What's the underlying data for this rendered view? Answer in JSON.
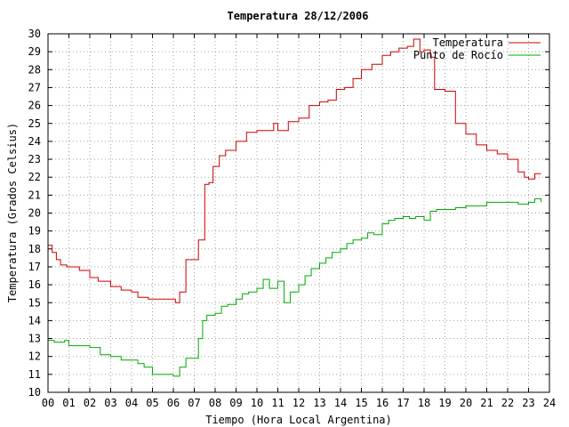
{
  "chart_data": {
    "type": "line",
    "title": "Temperatura 28/12/2006",
    "xlabel": "Tiempo (Hora Local Argentina)",
    "ylabel": "Temperatura (Grados Celsius)",
    "xlim": [
      0,
      24
    ],
    "ylim": [
      10,
      30
    ],
    "x_ticks": [
      "00",
      "01",
      "02",
      "03",
      "04",
      "05",
      "06",
      "07",
      "08",
      "09",
      "10",
      "11",
      "12",
      "13",
      "14",
      "15",
      "16",
      "17",
      "18",
      "19",
      "20",
      "21",
      "22",
      "23",
      "24"
    ],
    "y_ticks": [
      10,
      11,
      12,
      13,
      14,
      15,
      16,
      17,
      18,
      19,
      20,
      21,
      22,
      23,
      24,
      25,
      26,
      27,
      28,
      29,
      30
    ],
    "grid": true,
    "legend": "top-right",
    "series": [
      {
        "name": "Temperatura",
        "color": "#cc0000",
        "x": [
          0.0,
          0.2,
          0.4,
          0.6,
          0.9,
          1.0,
          1.5,
          2.0,
          2.4,
          3.0,
          3.5,
          4.0,
          4.3,
          4.8,
          5.5,
          6.0,
          6.1,
          6.3,
          6.6,
          7.0,
          7.2,
          7.5,
          7.7,
          7.9,
          8.2,
          8.5,
          9.0,
          9.5,
          10.0,
          10.5,
          10.8,
          11.0,
          11.5,
          12.0,
          12.5,
          13.0,
          13.4,
          13.8,
          14.2,
          14.6,
          15.0,
          15.5,
          16.0,
          16.4,
          16.8,
          17.2,
          17.5,
          17.8,
          18.0,
          18.3,
          18.5,
          19.0,
          19.5,
          20.0,
          20.5,
          21.0,
          21.5,
          22.0,
          22.5,
          22.8,
          23.0,
          23.3,
          23.6
        ],
        "values": [
          18.2,
          17.8,
          17.4,
          17.1,
          17.0,
          17.0,
          16.8,
          16.4,
          16.2,
          15.9,
          15.7,
          15.6,
          15.3,
          15.2,
          15.2,
          15.2,
          15.0,
          15.6,
          17.4,
          17.4,
          18.5,
          21.6,
          21.7,
          22.6,
          23.2,
          23.5,
          24.0,
          24.5,
          24.6,
          24.6,
          25.0,
          24.6,
          25.1,
          25.3,
          26.0,
          26.2,
          26.3,
          26.9,
          27.0,
          27.5,
          28.0,
          28.3,
          28.8,
          29.0,
          29.2,
          29.3,
          29.7,
          29.0,
          29.1,
          28.7,
          26.9,
          26.8,
          25.0,
          24.4,
          23.8,
          23.5,
          23.3,
          23.0,
          22.3,
          22.0,
          21.9,
          22.2,
          22.2
        ]
      },
      {
        "name": "Punto de Rocío",
        "color": "#00aa00",
        "x": [
          0.0,
          0.3,
          0.8,
          1.0,
          1.5,
          2.0,
          2.5,
          3.0,
          3.5,
          4.0,
          4.3,
          4.6,
          5.0,
          5.5,
          6.0,
          6.3,
          6.6,
          7.0,
          7.2,
          7.4,
          7.6,
          8.0,
          8.3,
          8.6,
          9.0,
          9.3,
          9.6,
          10.0,
          10.3,
          10.6,
          11.0,
          11.3,
          11.6,
          12.0,
          12.3,
          12.6,
          13.0,
          13.3,
          13.6,
          14.0,
          14.3,
          14.6,
          15.0,
          15.3,
          15.6,
          16.0,
          16.3,
          16.6,
          17.0,
          17.3,
          17.6,
          18.0,
          18.3,
          18.6,
          19.0,
          19.5,
          20.0,
          20.5,
          21.0,
          21.5,
          22.0,
          22.5,
          23.0,
          23.3,
          23.6
        ],
        "values": [
          12.9,
          12.8,
          12.9,
          12.6,
          12.6,
          12.5,
          12.1,
          12.0,
          11.8,
          11.8,
          11.6,
          11.4,
          11.0,
          11.0,
          10.9,
          11.4,
          11.9,
          11.9,
          13.0,
          14.0,
          14.3,
          14.4,
          14.8,
          14.9,
          15.2,
          15.5,
          15.6,
          15.8,
          16.3,
          15.8,
          16.2,
          15.0,
          15.6,
          16.0,
          16.5,
          16.9,
          17.2,
          17.5,
          17.8,
          18.0,
          18.3,
          18.5,
          18.6,
          18.9,
          18.8,
          19.4,
          19.6,
          19.7,
          19.8,
          19.7,
          19.8,
          19.6,
          20.1,
          20.2,
          20.2,
          20.3,
          20.4,
          20.4,
          20.6,
          20.6,
          20.6,
          20.5,
          20.6,
          20.8,
          20.6
        ]
      }
    ]
  }
}
